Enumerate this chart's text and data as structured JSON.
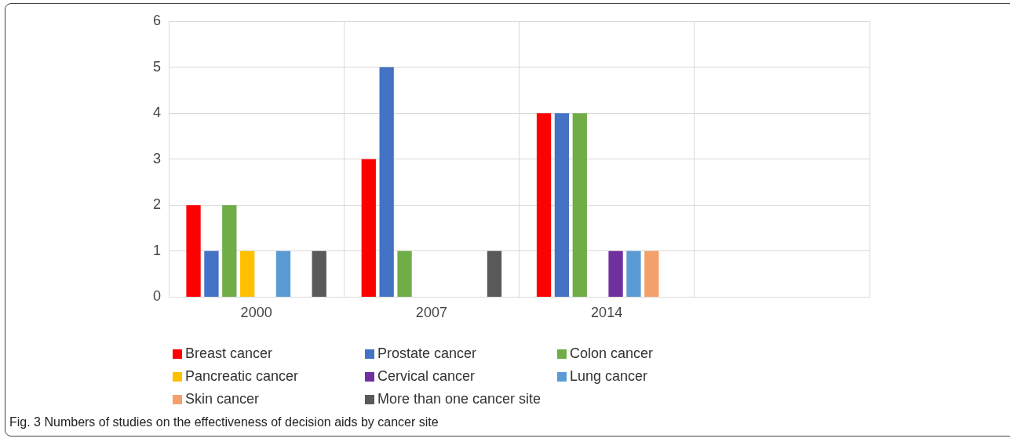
{
  "chart_data": {
    "type": "bar",
    "categories": [
      "2000",
      "2007",
      "2014",
      null
    ],
    "series": [
      {
        "name": "Breast cancer",
        "color": "#ff0000",
        "values": [
          2,
          3,
          4,
          0
        ]
      },
      {
        "name": "Prostate cancer",
        "color": "#4472c4",
        "values": [
          1,
          5,
          4,
          0
        ]
      },
      {
        "name": "Colon cancer",
        "color": "#70ad47",
        "values": [
          2,
          1,
          4,
          0
        ]
      },
      {
        "name": "Pancreatic cancer",
        "color": "#ffc000",
        "values": [
          1,
          0,
          0,
          0
        ]
      },
      {
        "name": "Cervical cancer",
        "color": "#7030a0",
        "values": [
          0,
          0,
          1,
          0
        ]
      },
      {
        "name": "Lung cancer",
        "color": "#5b9bd5",
        "values": [
          1,
          0,
          1,
          0
        ]
      },
      {
        "name": "Skin cancer",
        "color": "#f4a06a",
        "values": [
          0,
          0,
          1,
          0
        ]
      },
      {
        "name": "More than one cancer site",
        "color": "#595959",
        "values": [
          1,
          1,
          0,
          0
        ]
      }
    ],
    "ylim": [
      0,
      6
    ],
    "yticks": [
      0,
      1,
      2,
      3,
      4,
      5,
      6
    ],
    "grid": true,
    "legend": "bottom",
    "annotations": [
      "Fig. 3 Numbers of studies on the effectiveness of decision aids by cancer site"
    ]
  }
}
